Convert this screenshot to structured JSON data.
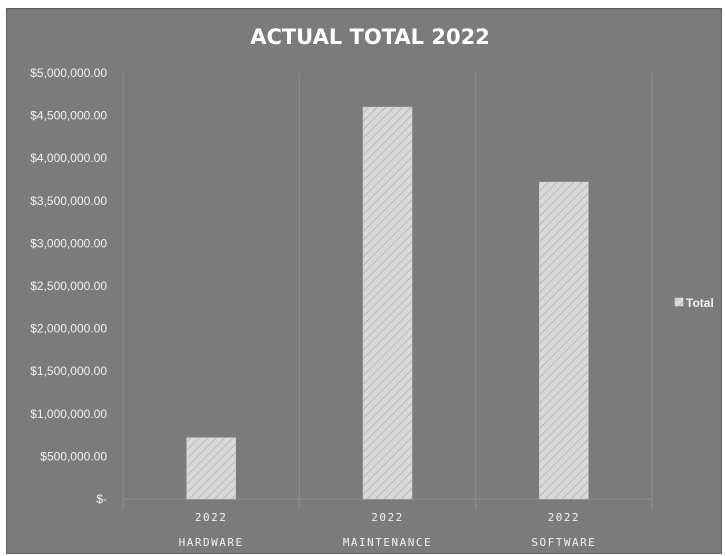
{
  "chart_data": {
    "type": "bar",
    "title": "ACTUAL TOTAL 2022",
    "categories": [
      [
        "2022",
        "HARDWARE"
      ],
      [
        "2022",
        "MAINTENANCE"
      ],
      [
        "2022",
        "SOFTWARE"
      ]
    ],
    "series": [
      {
        "name": "Total",
        "values": [
          720000,
          4600000,
          3720000
        ]
      }
    ],
    "ylim": [
      0,
      5000000
    ],
    "yticks": [
      0,
      500000,
      1000000,
      1500000,
      2000000,
      2500000,
      3000000,
      3500000,
      4000000,
      4500000,
      5000000
    ],
    "ytick_labels": [
      "$-",
      "$500,000.00",
      "$1,000,000.00",
      "$1,500,000.00",
      "$2,000,000.00",
      "$2,500,000.00",
      "$3,000,000.00",
      "$3,500,000.00",
      "$4,000,000.00",
      "$4,500,000.00",
      "$5,000,000.00"
    ],
    "grid": "vertical",
    "legend_position": "right",
    "colors": {
      "background": "#7b7b7b",
      "bar_fill": "#d9d9d9",
      "bar_hatch": "#bdbdbd",
      "gridline": "#8d8d8d",
      "text": "#f2f2f2"
    }
  }
}
